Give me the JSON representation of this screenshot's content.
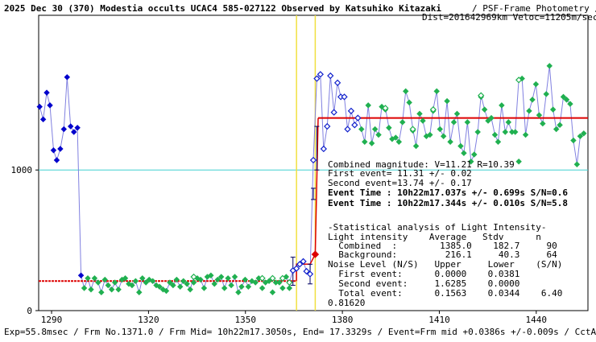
{
  "header": {
    "title": "2025 Dec 30 (370) Modestia occults UCAC4 585-027122 Observed by Katsuhiko Kitazaki",
    "meta_line1": "/ PSF-Frame Photometry /",
    "meta_line2": "Dist=201642969km Veloc=11205m/sec"
  },
  "footer": {
    "text": "Exp=55.8msec / Frm No.1371.0 / Frm Mid= 10h22m17.3050s, End= 17.3329s / Event=Frm mid +0.0386s +/-0.009s / CctAngle=0.0deg"
  },
  "results": {
    "lines": [
      "Combined magnitude:  V=11.21  R=10.39",
      "First event= 11.31 +/- 0.02",
      "Second event=13.74 +/- 0.17",
      "Event Time : 10h22m17.037s  +/- 0.699s  S/N=0.6",
      "Event Time : 10h22m17.344s  +/- 0.010s  S/N=5.8"
    ],
    "stats_lines": [
      "-Statistical analysis of Light Intensity-",
      "Light intensity    Average   Stdv      n",
      "  Combined  :        1385.0    182.7     90",
      "  Background:         216.1     40.3     64",
      "Noise Level (N/S)   Upper     Lower    (S/N)",
      "  First event:      0.0000    0.0381",
      "  Second event:     1.6285    0.0000",
      "  Total event:      0.1563    0.0344    6.40"
    ],
    "extra_value": "0.81620"
  },
  "chart_data": {
    "type": "line",
    "title": "2025 Dec 30 (370) Modestia occults UCAC4 585-027122 Observed by Katsuhiko Kitazaki",
    "xlabel": "",
    "ylabel": "",
    "xlim": [
      1286,
      1456
    ],
    "ylim": [
      0,
      2100
    ],
    "x_ticks": [
      1290,
      1320,
      1350,
      1380,
      1410,
      1440
    ],
    "y_ticks": [
      0,
      1000
    ],
    "reference_level": 1000,
    "event_lines_x": [
      1365.8,
      1371.6
    ],
    "model_fit": {
      "background_level": 210,
      "combined_level": 1370,
      "step_segment": [
        [
          1365.8,
          210
        ],
        [
          1365.8,
          330
        ],
        [
          1370.0,
          330
        ],
        [
          1371.6,
          400
        ],
        [
          1372.5,
          1370
        ]
      ]
    },
    "colors": {
      "background_points": "#20b050",
      "star_points": "#0000cc",
      "star_points_hollow": "#1020cc",
      "connecting_line": "#8080e0",
      "model_line": "#dd0000",
      "event_lines": "#f0e040",
      "reference_line": "#40d0d0",
      "error_bars": "#000060"
    },
    "series": [
      {
        "style": "filled-blue-diamond",
        "x": [
          1286.3,
          1287.4,
          1288.5,
          1289.5,
          1290.6,
          1291.6,
          1292.7,
          1293.8,
          1294.8,
          1295.9,
          1296.9,
          1298.0,
          1299.1
        ],
        "y": [
          1450,
          1360,
          1550,
          1460,
          1140,
          1070,
          1150,
          1290,
          1660,
          1310,
          1270,
          1300,
          250
        ]
      },
      {
        "style": "filled-green-diamond",
        "x": [
          1300.1,
          1301.2,
          1302.2,
          1303.3,
          1304.4,
          1305.4,
          1306.5,
          1307.5,
          1308.6,
          1309.6,
          1310.7,
          1311.8,
          1312.8,
          1313.9,
          1314.9,
          1316.0,
          1317.1,
          1318.1,
          1319.2,
          1320.2,
          1321.3,
          1322.4,
          1323.4,
          1324.5,
          1325.5,
          1326.6,
          1327.6,
          1328.7,
          1329.8,
          1330.8,
          1331.9,
          1332.9,
          1334.0,
          1335.1,
          1336.1,
          1337.2,
          1338.2,
          1339.3,
          1340.4,
          1341.4,
          1342.5,
          1343.5,
          1344.6,
          1345.6,
          1346.7,
          1347.8,
          1348.8,
          1349.9,
          1350.9,
          1352.0,
          1353.1,
          1354.1,
          1355.2,
          1356.2,
          1357.3,
          1358.4,
          1359.4,
          1360.5,
          1361.5,
          1362.6,
          1363.6
        ],
        "y": [
          160,
          230,
          150,
          230,
          200,
          130,
          220,
          180,
          150,
          200,
          150,
          220,
          230,
          190,
          180,
          210,
          130,
          230,
          200,
          220,
          210,
          180,
          170,
          150,
          140,
          200,
          180,
          220,
          170,
          210,
          190,
          150,
          200,
          230,
          220,
          160,
          240,
          250,
          190,
          220,
          240,
          160,
          230,
          180,
          240,
          130,
          170,
          220,
          170,
          210,
          200,
          230,
          160,
          200,
          210,
          130,
          200,
          200,
          160,
          240,
          160
        ]
      },
      {
        "style": "hollow-green-diamond",
        "x": [
          1334.0,
          1355.2,
          1358.4,
          1361.5,
          1363.6
        ],
        "y": [
          240,
          230,
          230,
          230,
          200
        ]
      },
      {
        "style": "hollow-blue-diamond",
        "x": [
          1364.7,
          1365.8,
          1366.8,
          1367.9,
          1368.9,
          1370.0,
          1371.0,
          1372.1,
          1373.2,
          1374.2,
          1375.3,
          1376.3,
          1377.4,
          1378.5,
          1379.5,
          1380.6,
          1381.6,
          1382.7,
          1383.8,
          1384.8
        ],
        "y": [
          285,
          300,
          330,
          350,
          280,
          260,
          1070,
          1650,
          1680,
          1150,
          1310,
          1670,
          1410,
          1620,
          1520,
          1520,
          1290,
          1420,
          1320,
          1370
        ]
      },
      {
        "style": "filled-green-diamond",
        "x": [
          1385.9,
          1386.9,
          1388.0,
          1389.1,
          1390.1,
          1391.2,
          1392.2,
          1393.3,
          1394.4,
          1395.4,
          1396.5,
          1397.5,
          1398.6,
          1399.6,
          1400.7,
          1401.8,
          1402.8,
          1403.9,
          1404.9,
          1406.0,
          1407.1,
          1408.1,
          1409.2,
          1410.2,
          1411.3,
          1412.4,
          1413.4,
          1414.5,
          1415.5,
          1416.6,
          1417.6,
          1418.7,
          1419.8,
          1420.8,
          1421.9,
          1422.9,
          1424.0,
          1425.1,
          1426.1,
          1427.2,
          1428.2,
          1429.3,
          1430.4,
          1431.4,
          1432.5,
          1433.5,
          1434.6,
          1435.6,
          1436.7,
          1437.8,
          1438.8,
          1439.9,
          1440.9,
          1442.0,
          1443.1,
          1444.1,
          1445.2,
          1446.2,
          1447.3,
          1448.4,
          1449.4,
          1450.5,
          1451.5,
          1452.6,
          1453.6,
          1454.7
        ],
        "y": [
          1290,
          1200,
          1460,
          1190,
          1290,
          1250,
          1450,
          1430,
          1300,
          1220,
          1230,
          1200,
          1340,
          1560,
          1480,
          1280,
          1170,
          1400,
          1350,
          1240,
          1250,
          1420,
          1560,
          1290,
          1240,
          1490,
          1200,
          1340,
          1400,
          1170,
          1120,
          1340,
          1060,
          1110,
          1270,
          1520,
          1430,
          1350,
          1370,
          1250,
          1200,
          1460,
          1270,
          1340,
          1270,
          1270,
          1060,
          1650,
          1250,
          1420,
          1500,
          1610,
          1390,
          1330,
          1540,
          1740,
          1430,
          1290,
          1320,
          1520,
          1500,
          1470,
          1210,
          1040,
          1240,
          1260
        ]
      },
      {
        "style": "hollow-green-diamond",
        "x": [
          1393.3,
          1401.8,
          1408.1,
          1422.9,
          1434.6
        ],
        "y": [
          1440,
          1290,
          1430,
          1530,
          1640
        ]
      }
    ],
    "error_bars": [
      {
        "x": 1364.7,
        "low": 180,
        "high": 380
      },
      {
        "x": 1370.0,
        "low": 190,
        "high": 330
      },
      {
        "x": 1371.0,
        "low": 790,
        "high": 870
      },
      {
        "x": 1372.1,
        "low": 1000,
        "high": 1310
      }
    ],
    "event_markers": [
      {
        "x": 1371.6,
        "y": 400
      }
    ]
  }
}
